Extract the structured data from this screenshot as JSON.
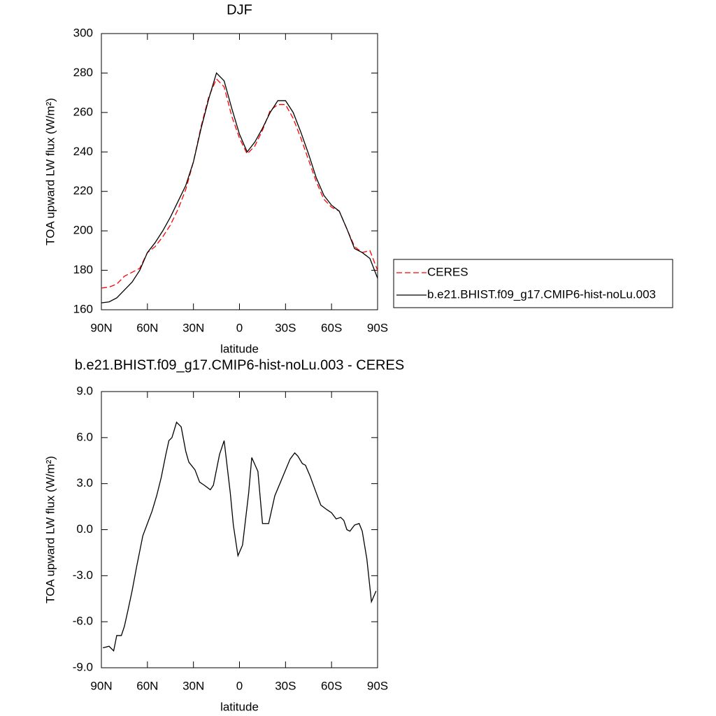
{
  "chart_data": [
    {
      "type": "line",
      "title": "DJF",
      "x_label": "latitude",
      "y_label": "TOA upward LW flux (W/m²)",
      "x": [
        90,
        85,
        80,
        75,
        70,
        65,
        60,
        55,
        50,
        45,
        40,
        35,
        30,
        25,
        20,
        15,
        10,
        5,
        0,
        -5,
        -10,
        -15,
        -20,
        -25,
        -30,
        -35,
        -40,
        -45,
        -50,
        -55,
        -60,
        -65,
        -70,
        -75,
        -80,
        -85,
        -90
      ],
      "series": [
        {
          "name": "CERES",
          "color": "#ff0000",
          "line_style": "dashed",
          "values": [
            171,
            171.5,
            173,
            177,
            179,
            181,
            189,
            192,
            197,
            203,
            211,
            221,
            235,
            253,
            268,
            277,
            273,
            258,
            247,
            239,
            243,
            251,
            261,
            264,
            264,
            257,
            247,
            236,
            225,
            216,
            212,
            210,
            201,
            192,
            189,
            190,
            180
          ]
        },
        {
          "name": "b.e21.BHIST.f09_g17.CMIP6-hist-noLu.003",
          "color": "#000000",
          "line_style": "solid",
          "values": [
            163.5,
            164,
            166,
            170,
            174,
            180,
            189,
            194,
            200,
            207,
            215,
            223,
            235,
            252,
            267,
            280,
            276,
            262,
            249,
            240,
            245,
            252,
            260,
            266,
            266,
            260,
            250,
            239,
            227,
            218,
            213,
            210,
            201,
            191,
            189,
            186,
            176
          ]
        }
      ],
      "xlim": [
        90,
        -90
      ],
      "xticks": [
        {
          "value": 90,
          "label": "90N"
        },
        {
          "value": 60,
          "label": "60N"
        },
        {
          "value": 30,
          "label": "30N"
        },
        0,
        {
          "value": -30,
          "label": "30S"
        },
        {
          "value": -60,
          "label": "60S"
        },
        {
          "value": -90,
          "label": "90S"
        }
      ],
      "ylim": [
        160,
        300
      ],
      "yticks": [
        160,
        180,
        200,
        220,
        240,
        260,
        280,
        300
      ],
      "legend": "right"
    },
    {
      "type": "line",
      "title": "b.e21.BHIST.f09_g17.CMIP6-hist-noLu.003 - CERES",
      "x_label": "latitude",
      "y_label": "TOA upward LW flux (W/m²)",
      "x": [
        89,
        85,
        82,
        80,
        77,
        75,
        73,
        70,
        67,
        63,
        60,
        57,
        54,
        51,
        48,
        46,
        44,
        41,
        38,
        35,
        33,
        29,
        26,
        23,
        19,
        17,
        13,
        10,
        6,
        4,
        1,
        -2,
        -6,
        -8,
        -12,
        -15,
        -19,
        -23,
        -28,
        -33,
        -36,
        -38,
        -41,
        -43,
        -46,
        -50,
        -53,
        -57,
        -60,
        -63,
        -66,
        -68,
        -70,
        -72,
        -75,
        -78,
        -80,
        -83,
        -86,
        -89
      ],
      "series": [
        {
          "color": "#000000",
          "line_style": "solid",
          "values": [
            -7.7,
            -7.6,
            -7.9,
            -6.9,
            -6.9,
            -6.3,
            -5.4,
            -4.0,
            -2.4,
            -0.4,
            0.4,
            1.2,
            2.2,
            3.4,
            4.9,
            5.8,
            6.0,
            7.0,
            6.7,
            5.1,
            4.4,
            3.9,
            3.1,
            2.9,
            2.6,
            2.9,
            4.9,
            5.8,
            2.4,
            0.3,
            -1.7,
            -1.0,
            2.4,
            4.7,
            3.8,
            0.4,
            0.4,
            2.2,
            3.4,
            4.6,
            5.0,
            4.8,
            4.3,
            4.2,
            3.5,
            2.4,
            1.6,
            1.3,
            1.1,
            0.7,
            0.8,
            0.6,
            0.0,
            -0.1,
            0.3,
            0.4,
            -0.1,
            -1.9,
            -4.7,
            -4.0
          ]
        }
      ],
      "xlim": [
        90,
        -90
      ],
      "xticks": [
        {
          "value": 90,
          "label": "90N"
        },
        {
          "value": 60,
          "label": "60N"
        },
        {
          "value": 30,
          "label": "30N"
        },
        0,
        {
          "value": -30,
          "label": "30S"
        },
        {
          "value": -60,
          "label": "60S"
        },
        {
          "value": -90,
          "label": "90S"
        }
      ],
      "ylim": [
        -9,
        9
      ],
      "yticks": [
        {
          "value": -9,
          "label": "-9.0"
        },
        {
          "value": -6,
          "label": "-6.0"
        },
        {
          "value": -3,
          "label": "-3.0"
        },
        {
          "value": 0,
          "label": "0.0"
        },
        {
          "value": 3,
          "label": "3.0"
        },
        {
          "value": 6,
          "label": "6.0"
        },
        {
          "value": 9,
          "label": "9.0"
        }
      ]
    }
  ]
}
